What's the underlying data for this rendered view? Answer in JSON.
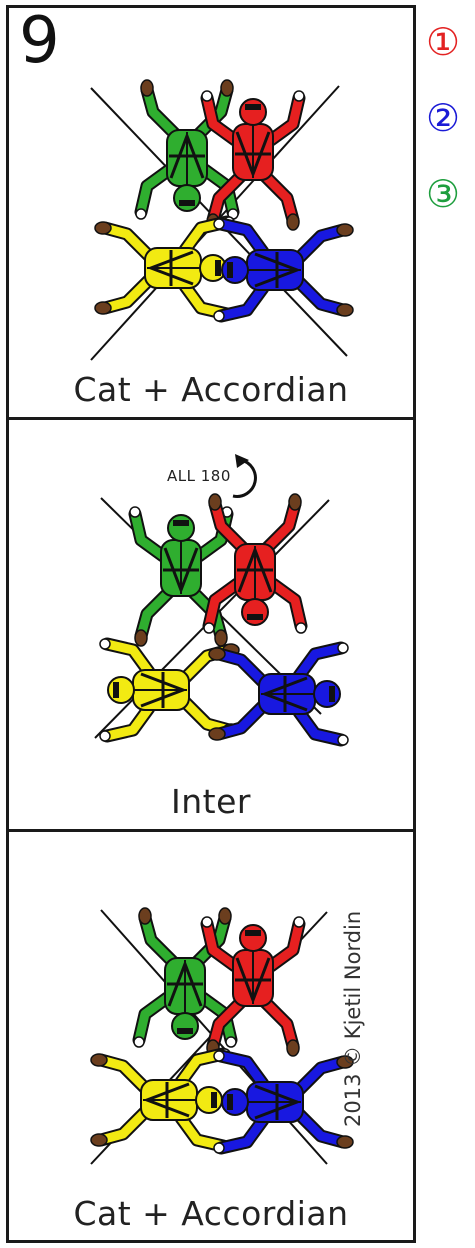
{
  "step_number": "9",
  "legend": [
    {
      "label": "①",
      "color": "#e32222"
    },
    {
      "label": "②",
      "color": "#1a1ad6"
    },
    {
      "label": "③",
      "color": "#1e9e3e"
    }
  ],
  "panels": [
    {
      "caption": "Cat + Accordian"
    },
    {
      "caption": "Inter",
      "rotation_label": "ALL 180"
    },
    {
      "caption": "Cat + Accordian"
    }
  ],
  "copyright": "2013 © Kjetil Nordin",
  "colors": {
    "green": "#2fae2f",
    "red": "#e62020",
    "yellow": "#f2ea12",
    "blue": "#1818e0",
    "outline": "#111111",
    "skin": "#6b3e1e"
  }
}
